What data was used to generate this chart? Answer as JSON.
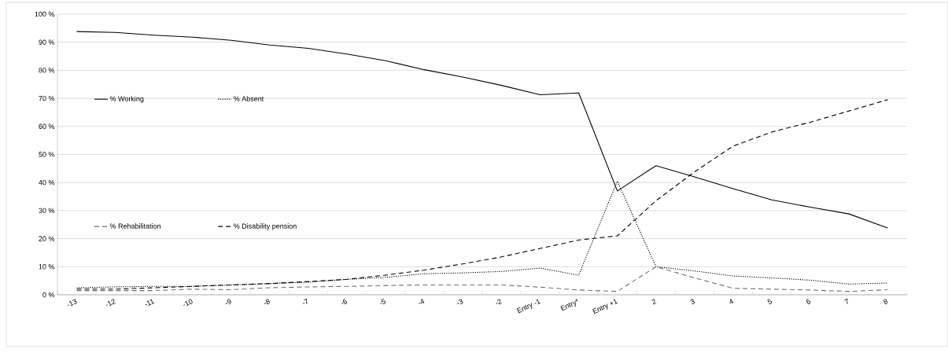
{
  "chart_data": {
    "type": "line",
    "categories": [
      "-13",
      "-12",
      "-11",
      "-10",
      "-9",
      "-8",
      "-7",
      "-6",
      "-5",
      "-4",
      "-3",
      "-2",
      "Entry -1",
      "Entry*",
      "Entry +1",
      "2",
      "3",
      "4",
      "5",
      "6",
      "7",
      "8"
    ],
    "series": [
      {
        "name": "% Working",
        "color": "#000000",
        "line_style": "solid",
        "values": [
          93.8,
          93.5,
          92.5,
          91.8,
          90.7,
          89,
          87.8,
          85.8,
          83.4,
          80.2,
          77.6,
          74.6,
          71.3,
          71.9,
          37,
          46,
          42,
          37.8,
          33.8,
          31.2,
          28.8,
          23.8
        ]
      },
      {
        "name": "% Absent",
        "color": "#000000",
        "line_style": "dotted",
        "values": [
          2.5,
          2.8,
          3,
          3,
          3.5,
          4,
          4.5,
          5.5,
          6.2,
          7.5,
          7.8,
          8.3,
          9.5,
          7,
          40.5,
          10,
          8.5,
          6.7,
          6,
          5.2,
          3.8,
          4.2
        ]
      },
      {
        "name": "% Rehabilitation",
        "color": "#6e6e6e",
        "line_style": "dashed",
        "values": [
          1.5,
          1.5,
          1.5,
          2,
          1.8,
          2.5,
          2.8,
          3,
          3.3,
          3.5,
          3.5,
          3.5,
          2.7,
          1.7,
          1.2,
          10,
          6,
          2.3,
          2,
          1.7,
          1.2,
          1.8
        ]
      },
      {
        "name": "% Disability pension",
        "color": "#000000",
        "line_style": "dashed",
        "values": [
          2,
          2,
          2.5,
          3,
          3.5,
          4,
          4.7,
          5.5,
          7,
          8.8,
          11,
          13.5,
          16.5,
          19.5,
          21,
          33.5,
          43.8,
          53,
          58,
          61.5,
          65.5,
          69.5
        ]
      }
    ],
    "ylim": [
      0,
      100
    ],
    "yticks": [
      {
        "value": 0,
        "label": "0 %"
      },
      {
        "value": 10,
        "label": "10 %"
      },
      {
        "value": 20,
        "label": "20 %"
      },
      {
        "value": 30,
        "label": "30 %"
      },
      {
        "value": 40,
        "label": "40 %"
      },
      {
        "value": 50,
        "label": "50 %"
      },
      {
        "value": 60,
        "label": "60 %"
      },
      {
        "value": 70,
        "label": "70 %"
      },
      {
        "value": 80,
        "label": "80 %"
      },
      {
        "value": 90,
        "label": "90 %"
      },
      {
        "value": 100,
        "label": "100 %"
      }
    ],
    "grid": "y",
    "legend": "left",
    "marker": "none"
  }
}
